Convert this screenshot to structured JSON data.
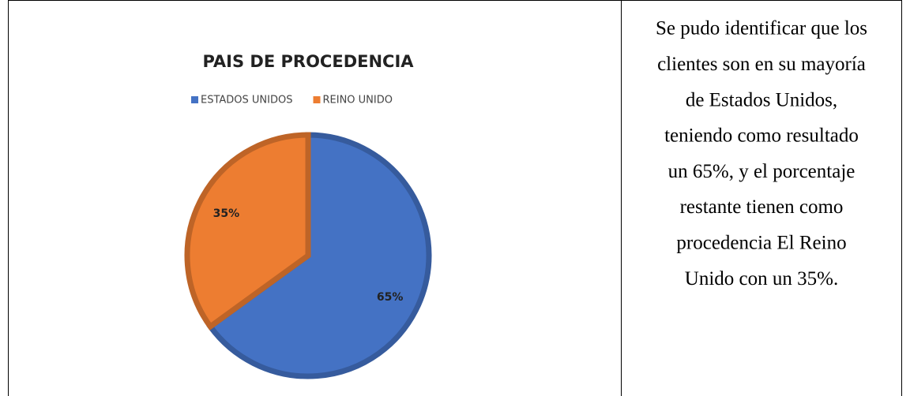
{
  "chart_data": {
    "type": "pie",
    "title": "PAIS DE PROCEDENCIA",
    "categories": [
      "ESTADOS UNIDOS",
      "REINO UNIDO"
    ],
    "values": [
      65,
      35
    ],
    "value_labels": [
      "65%",
      "35%"
    ],
    "colors": [
      "#4472c4",
      "#ed7d31"
    ],
    "legend": "top"
  },
  "text": {
    "lines": [
      "Se pudo identificar que los",
      "clientes son en su mayoría",
      "de Estados Unidos,",
      "teniendo como resultado",
      "un 65%, y el porcentaje",
      "restante tienen como",
      "procedencia El Reino",
      "Unido con un 35%."
    ]
  }
}
